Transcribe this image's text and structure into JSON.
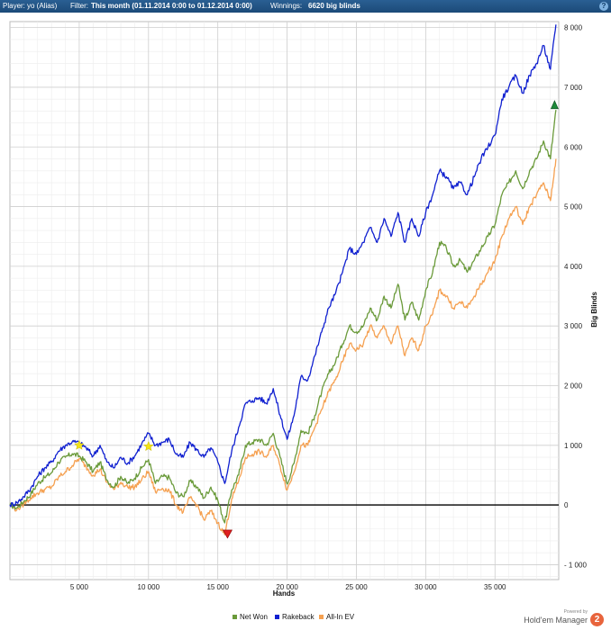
{
  "header": {
    "player_label": "Player:",
    "player_value": "yo (Alias)",
    "filter_label": "Filter:",
    "filter_value": "This month (01.11.2014 0:00 to 01.12.2014 0:00)",
    "winnings_label": "Winnings:",
    "winnings_value": "6620 big blinds",
    "help_icon": "?"
  },
  "footer": {
    "powered_by": "Powered by",
    "brand": "Hold'em Manager",
    "brand_logo": "2"
  },
  "chart_data": {
    "type": "line",
    "xlabel": "Hands",
    "ylabel": "Big Blinds",
    "xlim": [
      0,
      39600
    ],
    "ylim": [
      -1250,
      8100
    ],
    "x_ticks": [
      5000,
      10000,
      15000,
      20000,
      25000,
      30000,
      35000
    ],
    "x_tick_labels": [
      "5 000",
      "10 000",
      "15 000",
      "20 000",
      "25 000",
      "30 000",
      "35 000"
    ],
    "y_ticks": [
      -1000,
      0,
      1000,
      2000,
      3000,
      4000,
      5000,
      6000,
      7000,
      8000
    ],
    "y_tick_labels": [
      "- 1 000",
      "0",
      "1 000",
      "2 000",
      "3 000",
      "4 000",
      "5 000",
      "6 000",
      "7 000",
      "8 000"
    ],
    "grid": true,
    "legend_position": "bottom-center",
    "series": [
      {
        "name": "Net Won",
        "color": "#6a9a3a",
        "x": [
          0,
          500,
          1000,
          1500,
          2000,
          2500,
          3000,
          3500,
          4000,
          4500,
          5000,
          5500,
          6000,
          6500,
          7000,
          7500,
          8000,
          8500,
          9000,
          9500,
          10000,
          10500,
          11000,
          11500,
          12000,
          12500,
          13000,
          13500,
          14000,
          14500,
          15000,
          15500,
          16000,
          16500,
          17000,
          17500,
          18000,
          18500,
          19000,
          19500,
          20000,
          20500,
          21000,
          21500,
          22000,
          22500,
          23000,
          23500,
          24000,
          24500,
          25000,
          25500,
          26000,
          26500,
          27000,
          27500,
          28000,
          28500,
          29000,
          29500,
          30000,
          30500,
          31000,
          31500,
          32000,
          32500,
          33000,
          33500,
          34000,
          34500,
          35000,
          35500,
          36000,
          36500,
          37000,
          37500,
          38000,
          38500,
          39000,
          39400
        ],
        "y": [
          0,
          -50,
          60,
          180,
          360,
          460,
          540,
          720,
          800,
          860,
          820,
          720,
          560,
          720,
          420,
          300,
          480,
          360,
          450,
          620,
          760,
          360,
          480,
          460,
          200,
          140,
          400,
          300,
          120,
          300,
          80,
          -300,
          250,
          500,
          1000,
          1050,
          1100,
          1000,
          1200,
          800,
          350,
          700,
          1250,
          1200,
          1500,
          1900,
          2200,
          2400,
          2700,
          3000,
          2900,
          3000,
          3300,
          3100,
          3500,
          3300,
          3700,
          3100,
          3400,
          3100,
          3600,
          3900,
          4400,
          4300,
          4000,
          4100,
          3900,
          4100,
          4300,
          4500,
          4700,
          5200,
          5400,
          5600,
          5300,
          5600,
          5800,
          6100,
          5800,
          6620
        ]
      },
      {
        "name": "Rakeback",
        "color": "#1020d0",
        "x": [
          0,
          500,
          1000,
          1500,
          2000,
          2500,
          3000,
          3500,
          4000,
          4500,
          5000,
          5500,
          6000,
          6500,
          7000,
          7500,
          8000,
          8500,
          9000,
          9500,
          10000,
          10500,
          11000,
          11500,
          12000,
          12500,
          13000,
          13500,
          14000,
          14500,
          15000,
          15500,
          16000,
          16500,
          17000,
          17500,
          18000,
          18500,
          19000,
          19500,
          20000,
          20500,
          21000,
          21500,
          22000,
          22500,
          23000,
          23500,
          24000,
          24500,
          25000,
          25500,
          26000,
          26500,
          27000,
          27500,
          28000,
          28500,
          29000,
          29500,
          30000,
          30500,
          31000,
          31500,
          32000,
          32500,
          33000,
          33500,
          34000,
          34500,
          35000,
          35500,
          36000,
          36500,
          37000,
          37500,
          38000,
          38500,
          39000,
          39400
        ],
        "y": [
          0,
          40,
          140,
          280,
          480,
          620,
          720,
          900,
          1000,
          1060,
          1040,
          960,
          820,
          1000,
          720,
          620,
          800,
          700,
          820,
          1020,
          1200,
          1000,
          1050,
          1100,
          850,
          800,
          1050,
          920,
          800,
          960,
          720,
          360,
          900,
          1300,
          1700,
          1750,
          1800,
          1700,
          1950,
          1500,
          1100,
          1500,
          2150,
          2100,
          2500,
          2900,
          3300,
          3550,
          3900,
          4300,
          4200,
          4400,
          4650,
          4400,
          4800,
          4500,
          4900,
          4400,
          4800,
          4500,
          4900,
          5200,
          5600,
          5500,
          5300,
          5400,
          5200,
          5500,
          5800,
          6000,
          6200,
          6800,
          7000,
          7200,
          6900,
          7200,
          7400,
          7700,
          7300,
          8050
        ]
      },
      {
        "name": "All-In EV",
        "color": "#f5a050",
        "x": [
          0,
          500,
          1000,
          1500,
          2000,
          2500,
          3000,
          3500,
          4000,
          4500,
          5000,
          5500,
          6000,
          6500,
          7000,
          7500,
          8000,
          8500,
          9000,
          9500,
          10000,
          10500,
          11000,
          11500,
          12000,
          12500,
          13000,
          13500,
          14000,
          14500,
          15000,
          15500,
          16000,
          16500,
          17000,
          17500,
          18000,
          18500,
          19000,
          19500,
          20000,
          20500,
          21000,
          21500,
          22000,
          22500,
          23000,
          23500,
          24000,
          24500,
          25000,
          25500,
          26000,
          26500,
          27000,
          27500,
          28000,
          28500,
          29000,
          29500,
          30000,
          30500,
          31000,
          31500,
          32000,
          32500,
          33000,
          33500,
          34000,
          34500,
          35000,
          35500,
          36000,
          36500,
          37000,
          37500,
          38000,
          38500,
          39000,
          39400
        ],
        "y": [
          0,
          -80,
          20,
          120,
          200,
          260,
          300,
          460,
          560,
          660,
          780,
          640,
          500,
          600,
          380,
          260,
          380,
          300,
          300,
          420,
          560,
          220,
          280,
          240,
          0,
          -120,
          120,
          0,
          -250,
          -100,
          -300,
          -500,
          100,
          400,
          800,
          850,
          900,
          800,
          1000,
          650,
          250,
          550,
          1000,
          1000,
          1300,
          1600,
          1900,
          2100,
          2400,
          2700,
          2600,
          2700,
          3000,
          2800,
          3000,
          2700,
          3000,
          2500,
          2800,
          2600,
          3000,
          3200,
          3600,
          3500,
          3300,
          3400,
          3300,
          3500,
          3700,
          3900,
          4100,
          4500,
          4800,
          5000,
          4700,
          5000,
          5200,
          5400,
          5100,
          5800
        ]
      }
    ],
    "markers": [
      {
        "type": "star",
        "x": 5000,
        "y": 1000,
        "color": "#f2e21a"
      },
      {
        "type": "star",
        "x": 10000,
        "y": 980,
        "color": "#f2e21a"
      },
      {
        "type": "min",
        "x": 15700,
        "y": -480,
        "color": "#e02020"
      },
      {
        "type": "max",
        "x": 39300,
        "y": 6700,
        "color": "#1e8a3a"
      }
    ]
  }
}
